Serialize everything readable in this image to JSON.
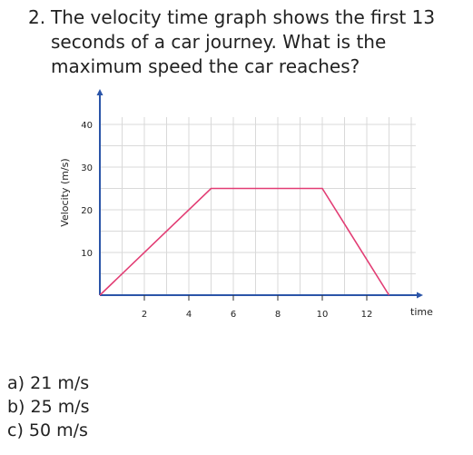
{
  "question": {
    "number": "2.",
    "text": "The velocity time graph shows the first 13 seconds of a car journey. What is the maximum speed the car reaches?"
  },
  "chart_data": {
    "type": "line",
    "xlabel": "time",
    "ylabel": "Velocity (m/s)",
    "xlim": [
      0,
      14.5
    ],
    "ylim": [
      0,
      40
    ],
    "x_ticks": [
      2,
      4,
      6,
      8,
      10,
      12
    ],
    "y_ticks": [
      10,
      20,
      30,
      40
    ],
    "grid": true,
    "axis_color": "#2b55a8",
    "line_color": "#e23d74",
    "grid_color": "#d9d9d9",
    "series": [
      {
        "x": [
          0,
          5,
          10,
          13
        ],
        "y": [
          0,
          25,
          25,
          0
        ]
      }
    ]
  },
  "answers": [
    {
      "letter": "a)",
      "text": "21 m/s"
    },
    {
      "letter": "b)",
      "text": "25 m/s"
    },
    {
      "letter": "c)",
      "text": "50 m/s"
    }
  ]
}
